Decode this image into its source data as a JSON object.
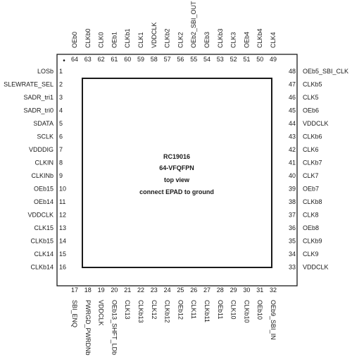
{
  "package": {
    "center_lines": [
      "RC19016",
      "64-VFQFPN",
      "top view",
      "connect EPAD to ground"
    ],
    "pin1_marker": "•"
  },
  "pins": {
    "left": [
      {
        "num": "1",
        "name": "LOSb"
      },
      {
        "num": "2",
        "name": "SLEWRATE_SEL"
      },
      {
        "num": "3",
        "name": "SADR_tri1"
      },
      {
        "num": "4",
        "name": "SADR_tri0"
      },
      {
        "num": "5",
        "name": "SDATA"
      },
      {
        "num": "6",
        "name": "SCLK"
      },
      {
        "num": "7",
        "name": "VDDDIG"
      },
      {
        "num": "8",
        "name": "CLKIN"
      },
      {
        "num": "9",
        "name": "CLKINb"
      },
      {
        "num": "10",
        "name": "OEb15"
      },
      {
        "num": "11",
        "name": "OEb14"
      },
      {
        "num": "12",
        "name": "VDDCLK"
      },
      {
        "num": "13",
        "name": "CLK15"
      },
      {
        "num": "14",
        "name": "CLKb15"
      },
      {
        "num": "15",
        "name": "CLK14"
      },
      {
        "num": "16",
        "name": "CLKb14"
      }
    ],
    "bottom": [
      {
        "num": "17",
        "name": "SBI_ENQ"
      },
      {
        "num": "18",
        "name": "PWRGD_PWRDNb"
      },
      {
        "num": "19",
        "name": "VDDCLK"
      },
      {
        "num": "20",
        "name": "OEb13_SHFT_LDb"
      },
      {
        "num": "21",
        "name": "CLK13"
      },
      {
        "num": "22",
        "name": "CLKb13"
      },
      {
        "num": "23",
        "name": "CLK12"
      },
      {
        "num": "24",
        "name": "CLKb12"
      },
      {
        "num": "25",
        "name": "OEb12"
      },
      {
        "num": "26",
        "name": "CLK11"
      },
      {
        "num": "27",
        "name": "CLKb11"
      },
      {
        "num": "28",
        "name": "OEb11"
      },
      {
        "num": "29",
        "name": "CLK10"
      },
      {
        "num": "30",
        "name": "CLKb10"
      },
      {
        "num": "31",
        "name": "OEb10"
      },
      {
        "num": "32",
        "name": "OEb9_SBI_IN"
      }
    ],
    "right": [
      {
        "num": "48",
        "name": "OEb5_SBI_CLK"
      },
      {
        "num": "47",
        "name": "CLKb5"
      },
      {
        "num": "46",
        "name": "CLK5"
      },
      {
        "num": "45",
        "name": "OEb6"
      },
      {
        "num": "44",
        "name": "VDDCLK"
      },
      {
        "num": "43",
        "name": "CLKb6"
      },
      {
        "num": "42",
        "name": "CLK6"
      },
      {
        "num": "41",
        "name": "CLKb7"
      },
      {
        "num": "40",
        "name": "CLK7"
      },
      {
        "num": "39",
        "name": "OEb7"
      },
      {
        "num": "38",
        "name": "CLKb8"
      },
      {
        "num": "37",
        "name": "CLK8"
      },
      {
        "num": "36",
        "name": "OEb8"
      },
      {
        "num": "35",
        "name": "CLKb9"
      },
      {
        "num": "34",
        "name": "CLK9"
      },
      {
        "num": "33",
        "name": "VDDCLK"
      }
    ],
    "top": [
      {
        "num": "64",
        "name": "OEb0"
      },
      {
        "num": "63",
        "name": "CLKb0"
      },
      {
        "num": "62",
        "name": "CLK0"
      },
      {
        "num": "61",
        "name": "OEb1"
      },
      {
        "num": "60",
        "name": "CLKb1"
      },
      {
        "num": "59",
        "name": "CLK1"
      },
      {
        "num": "58",
        "name": "VDDCLK"
      },
      {
        "num": "57",
        "name": "CLKb2"
      },
      {
        "num": "56",
        "name": "CLK2"
      },
      {
        "num": "55",
        "name": "OEb2_SBI_OUT"
      },
      {
        "num": "54",
        "name": "OEb3"
      },
      {
        "num": "53",
        "name": "CLKb3"
      },
      {
        "num": "52",
        "name": "CLK3"
      },
      {
        "num": "51",
        "name": "OEb4"
      },
      {
        "num": "50",
        "name": "CLKb4"
      },
      {
        "num": "49",
        "name": "CLK4"
      }
    ]
  }
}
